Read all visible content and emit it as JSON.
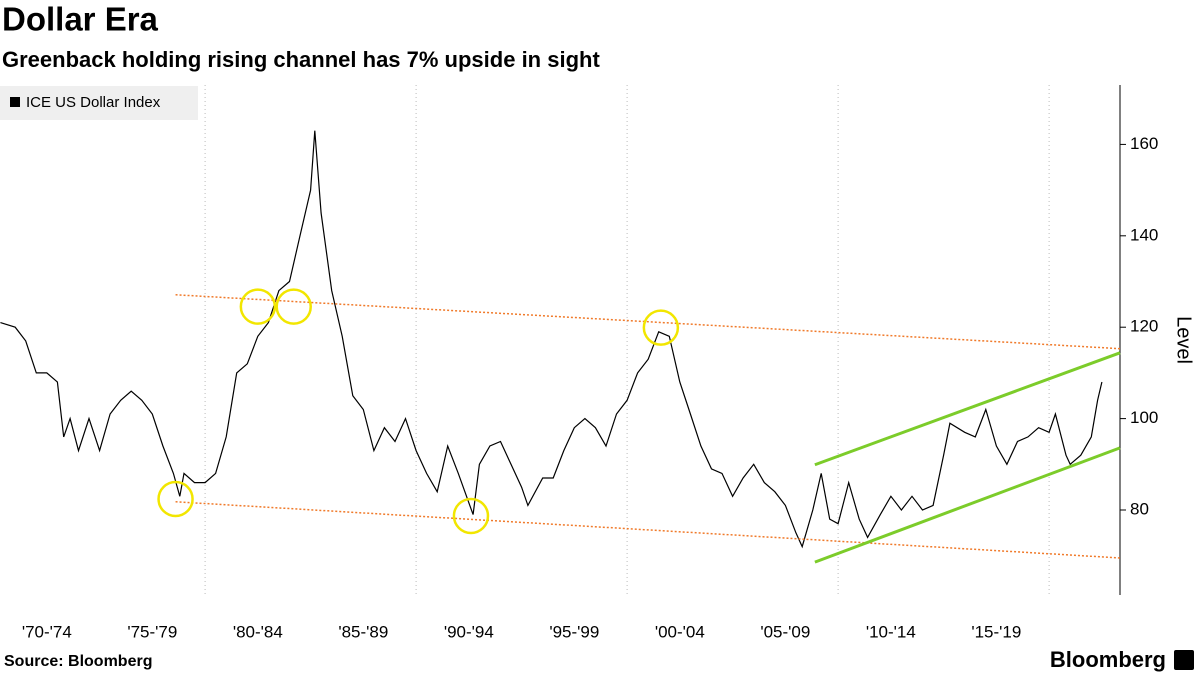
{
  "chart_data": {
    "type": "line",
    "title": "Dollar Era",
    "subtitle": "Greenback holding rising channel has 7% upside in sight",
    "source": "Source: Bloomberg",
    "brand": "Bloomberg",
    "y_label": "Level",
    "x": [
      1970.3,
      1971.0,
      1971.5,
      1972.0,
      1972.5,
      1973.0,
      1973.3,
      1973.6,
      1974.0,
      1974.5,
      1975.0,
      1975.5,
      1976.0,
      1976.5,
      1977.0,
      1977.5,
      1978.0,
      1978.5,
      1978.8,
      1979.0,
      1979.5,
      1980.0,
      1980.5,
      1981.0,
      1981.5,
      1982.0,
      1982.5,
      1983.0,
      1983.5,
      1984.0,
      1984.5,
      1985.0,
      1985.2,
      1985.5,
      1986.0,
      1986.5,
      1987.0,
      1987.5,
      1988.0,
      1988.5,
      1989.0,
      1989.5,
      1990.0,
      1990.5,
      1991.0,
      1991.5,
      1992.0,
      1992.7,
      1993.0,
      1993.5,
      1994.0,
      1994.5,
      1995.0,
      1995.3,
      1996.0,
      1996.5,
      1997.0,
      1997.5,
      1998.0,
      1998.5,
      1999.0,
      1999.5,
      2000.0,
      2000.5,
      2001.0,
      2001.5,
      2002.0,
      2002.5,
      2003.0,
      2003.5,
      2004.0,
      2004.5,
      2005.0,
      2005.5,
      2006.0,
      2006.5,
      2007.0,
      2007.5,
      2008.0,
      2008.3,
      2008.8,
      2009.2,
      2009.6,
      2010.0,
      2010.5,
      2011.0,
      2011.4,
      2012.0,
      2012.5,
      2013.0,
      2013.5,
      2014.0,
      2014.5,
      2015.0,
      2015.3,
      2016.0,
      2016.5,
      2017.0,
      2017.5,
      2018.0,
      2018.5,
      2019.0,
      2019.5,
      2020.0,
      2020.3,
      2020.8,
      2021.0,
      2021.5,
      2022.0,
      2022.3,
      2022.5
    ],
    "series": [
      {
        "name": "ICE US Dollar Index",
        "color": "#000000",
        "values": [
          121,
          120,
          117,
          110,
          110,
          108,
          96,
          100,
          93,
          100,
          93,
          101,
          104,
          106,
          104,
          101,
          94,
          88,
          83,
          88,
          86,
          86,
          88,
          96,
          110,
          112,
          118,
          121,
          128,
          130,
          140,
          150,
          163,
          145,
          128,
          118,
          105,
          102,
          93,
          98,
          95,
          100,
          93,
          88,
          84,
          94,
          88,
          79,
          90,
          94,
          95,
          90,
          85,
          81,
          87,
          87,
          93,
          98,
          100,
          98,
          94,
          101,
          104,
          110,
          113,
          119,
          118,
          108,
          101,
          94,
          89,
          88,
          83,
          87,
          90,
          86,
          84,
          81,
          75,
          72,
          80,
          88,
          78,
          77,
          86,
          78,
          74,
          79,
          83,
          80,
          83,
          80,
          81,
          92,
          99,
          97,
          96,
          102,
          94,
          90,
          95,
          96,
          98,
          97,
          101,
          92,
          90,
          92,
          96,
          104,
          108
        ]
      }
    ],
    "xlim": [
      1970.28,
      2023.36
    ],
    "ylim": [
      61.4,
      173
    ],
    "yticks": [
      80,
      100,
      120,
      140,
      160
    ],
    "xticks": [
      {
        "value": 1972.5,
        "label": "'70-'74"
      },
      {
        "value": 1977.5,
        "label": "'75-'79"
      },
      {
        "value": 1982.5,
        "label": "'80-'84"
      },
      {
        "value": 1987.5,
        "label": "'85-'89"
      },
      {
        "value": 1992.5,
        "label": "'90-'94"
      },
      {
        "value": 1997.5,
        "label": "'95-'99"
      },
      {
        "value": 2002.5,
        "label": "'00-'04"
      },
      {
        "value": 2007.5,
        "label": "'05-'09"
      },
      {
        "value": 2012.5,
        "label": "'10-'14"
      },
      {
        "value": 2017.5,
        "label": "'15-'19"
      }
    ],
    "xgrid": [
      1980,
      1990,
      2000,
      2010,
      2020
    ],
    "trend_lines": [
      {
        "color": "#f07a2a",
        "style": "dotted",
        "x": [
          1978.6,
          2023.36
        ],
        "y": [
          127.1,
          115.3
        ]
      },
      {
        "color": "#f07a2a",
        "style": "dotted",
        "x": [
          1978.6,
          2023.36
        ],
        "y": [
          81.8,
          69.5
        ]
      },
      {
        "color": "#7ccc2a",
        "style": "solid",
        "x": [
          2008.9,
          2023.36
        ],
        "y": [
          89.9,
          114.4
        ]
      },
      {
        "color": "#7ccc2a",
        "style": "solid",
        "x": [
          2008.9,
          2023.36
        ],
        "y": [
          68.6,
          93.6
        ]
      }
    ],
    "highlight_color": "#f2e600",
    "highlights": [
      {
        "x": 1978.6,
        "y": 82.4
      },
      {
        "x": 1982.5,
        "y": 124.5
      },
      {
        "x": 1984.2,
        "y": 124.5
      },
      {
        "x": 1992.6,
        "y": 78.7
      },
      {
        "x": 2001.6,
        "y": 119.9
      }
    ]
  }
}
